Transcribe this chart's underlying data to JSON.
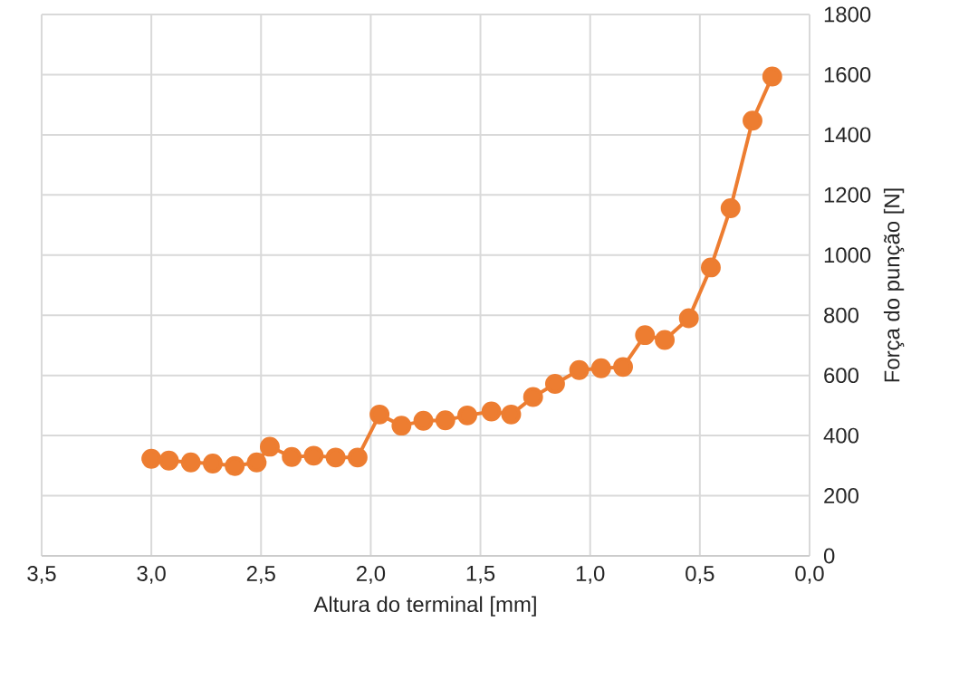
{
  "chart_data": {
    "type": "line",
    "xlabel": "Altura do terminal [mm]",
    "ylabel": "Força do punção [N]",
    "x": [
      3.0,
      2.92,
      2.82,
      2.72,
      2.62,
      2.52,
      2.46,
      2.36,
      2.26,
      2.16,
      2.06,
      1.96,
      1.86,
      1.76,
      1.66,
      1.56,
      1.45,
      1.36,
      1.26,
      1.16,
      1.05,
      0.95,
      0.85,
      0.75,
      0.66,
      0.55,
      0.45,
      0.36,
      0.26,
      0.17
    ],
    "series": [
      {
        "color": "#ed7d31",
        "values": [
          323,
          317,
          311,
          307,
          299,
          311,
          363,
          329,
          333,
          327,
          327,
          470,
          433,
          449,
          451,
          467,
          480,
          470,
          528,
          572,
          618,
          624,
          628,
          734,
          718,
          790,
          959,
          1156,
          1447,
          1594
        ]
      }
    ],
    "xlim": [
      3.5,
      0.0
    ],
    "xticks": [
      {
        "value": 3.5,
        "label": "3,5"
      },
      {
        "value": 3.0,
        "label": "3,0"
      },
      {
        "value": 2.5,
        "label": "2,5"
      },
      {
        "value": 2.0,
        "label": "2,0"
      },
      {
        "value": 1.5,
        "label": "1,5"
      },
      {
        "value": 1.0,
        "label": "1,0"
      },
      {
        "value": 0.5,
        "label": "0,5"
      },
      {
        "value": 0.0,
        "label": "0,0"
      }
    ],
    "ylim": [
      0,
      1800
    ],
    "yticks": [
      0,
      200,
      400,
      600,
      800,
      1000,
      1200,
      1400,
      1600,
      1800
    ],
    "grid": true,
    "marker": "circle",
    "line_style": "solid"
  }
}
